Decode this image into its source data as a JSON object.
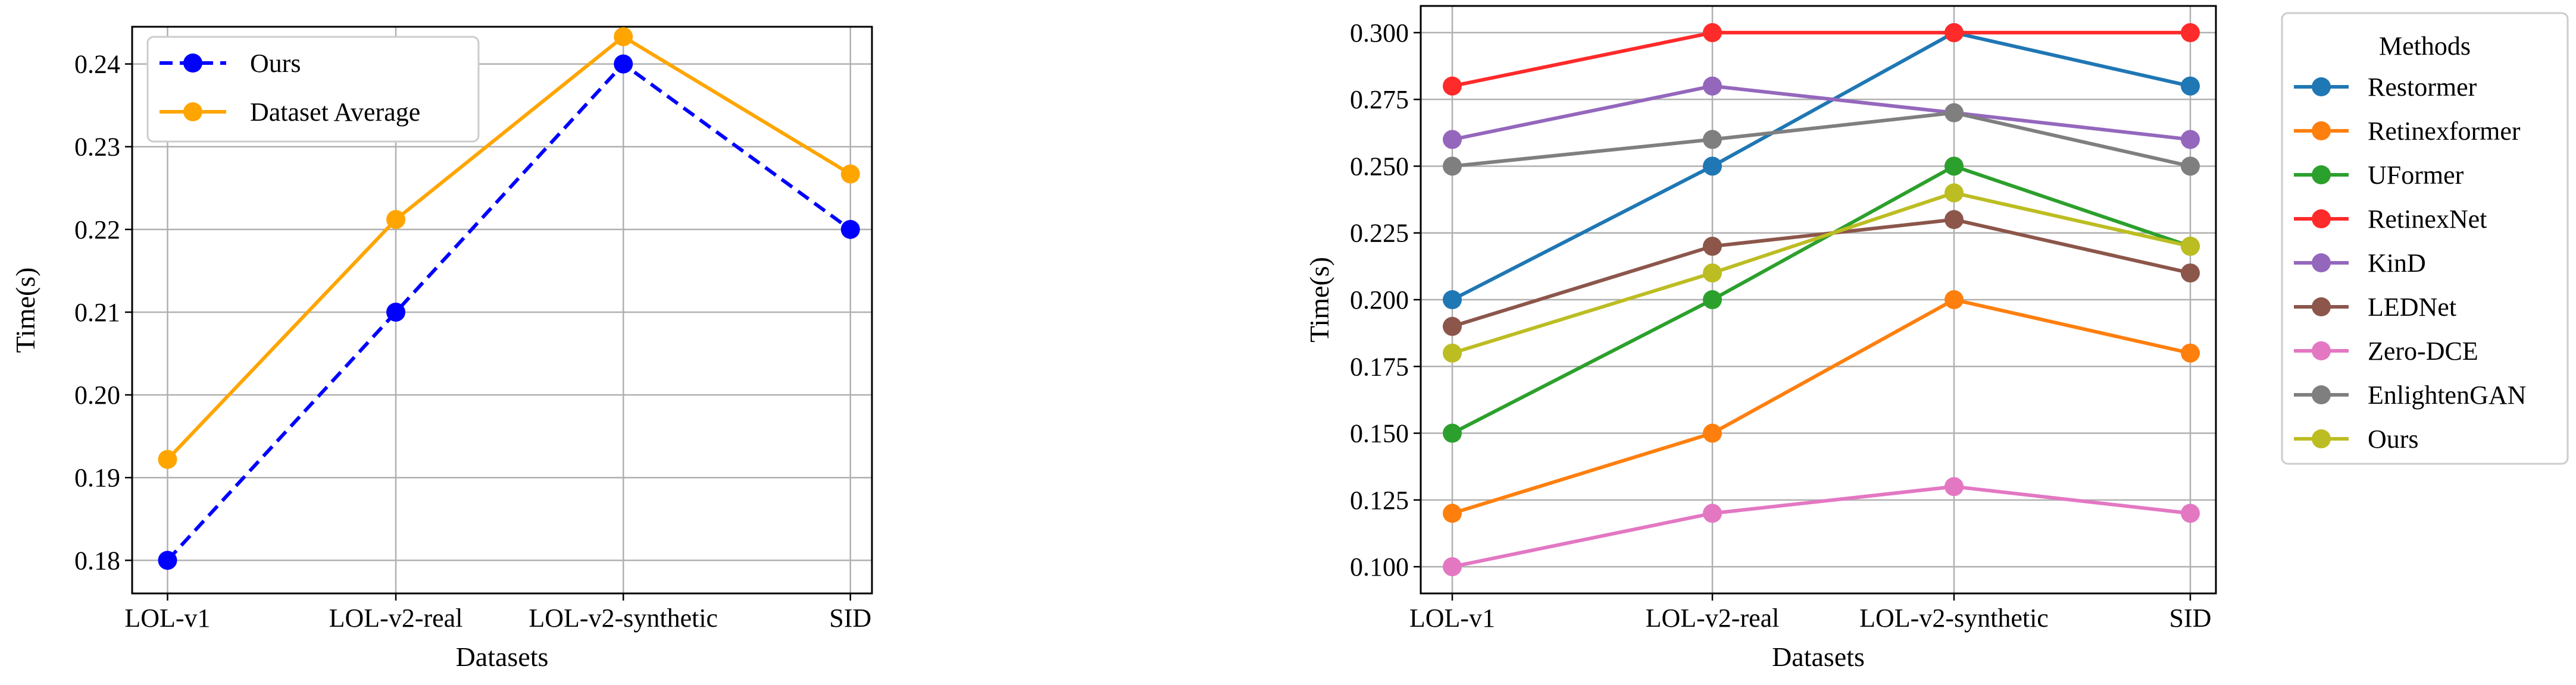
{
  "chart_data": [
    {
      "type": "line",
      "categories": [
        "LOL-v1",
        "LOL-v2-real",
        "LOL-v2-synthetic",
        "SID"
      ],
      "xlabel": "Datasets",
      "ylabel": "Time(s)",
      "ylim": [
        0.176,
        0.2445
      ],
      "yticks": [
        0.18,
        0.19,
        0.2,
        0.21,
        0.22,
        0.23,
        0.24
      ],
      "ytick_labels": [
        "0.18",
        "0.19",
        "0.20",
        "0.21",
        "0.22",
        "0.23",
        "0.24"
      ],
      "grid": true,
      "legend": "top-left",
      "series": [
        {
          "name": "Ours",
          "color": "#0000ff",
          "dashed": true,
          "values": [
            0.18,
            0.21,
            0.24,
            0.22
          ]
        },
        {
          "name": "Dataset Average",
          "color": "#ffa500",
          "dashed": false,
          "values": [
            0.1922,
            0.2212,
            0.2433,
            0.2267
          ]
        }
      ]
    },
    {
      "type": "line",
      "categories": [
        "LOL-v1",
        "LOL-v2-real",
        "LOL-v2-synthetic",
        "SID"
      ],
      "xlabel": "Datasets",
      "ylabel": "Time(s)",
      "ylim": [
        0.09,
        0.31
      ],
      "yticks": [
        0.1,
        0.125,
        0.15,
        0.175,
        0.2,
        0.225,
        0.25,
        0.275,
        0.3
      ],
      "ytick_labels": [
        "0.100",
        "0.125",
        "0.150",
        "0.175",
        "0.200",
        "0.225",
        "0.250",
        "0.275",
        "0.300"
      ],
      "grid": true,
      "legend": "outside-right",
      "legend_title": "Methods",
      "series": [
        {
          "name": "Restormer",
          "color": "#1f77b4",
          "values": [
            0.2,
            0.25,
            0.3,
            0.28
          ]
        },
        {
          "name": "Retinexformer",
          "color": "#ff7f0e",
          "values": [
            0.12,
            0.15,
            0.2,
            0.18
          ]
        },
        {
          "name": "UFormer",
          "color": "#2ca02c",
          "values": [
            0.15,
            0.2,
            0.25,
            0.22
          ]
        },
        {
          "name": "RetinexNet",
          "color": "#ff2a2a",
          "values": [
            0.28,
            0.3,
            0.3,
            0.3
          ]
        },
        {
          "name": "KinD",
          "color": "#9467bd",
          "values": [
            0.26,
            0.28,
            0.27,
            0.26
          ]
        },
        {
          "name": "LEDNet",
          "color": "#8c564b",
          "values": [
            0.19,
            0.22,
            0.23,
            0.21
          ]
        },
        {
          "name": "Zero-DCE",
          "color": "#e377c2",
          "values": [
            0.1,
            0.12,
            0.13,
            0.12
          ]
        },
        {
          "name": "EnlightenGAN",
          "color": "#7f7f7f",
          "values": [
            0.25,
            0.26,
            0.27,
            0.25
          ]
        },
        {
          "name": "Ours",
          "color": "#bcbd22",
          "values": [
            0.18,
            0.21,
            0.24,
            0.22
          ]
        }
      ]
    }
  ]
}
